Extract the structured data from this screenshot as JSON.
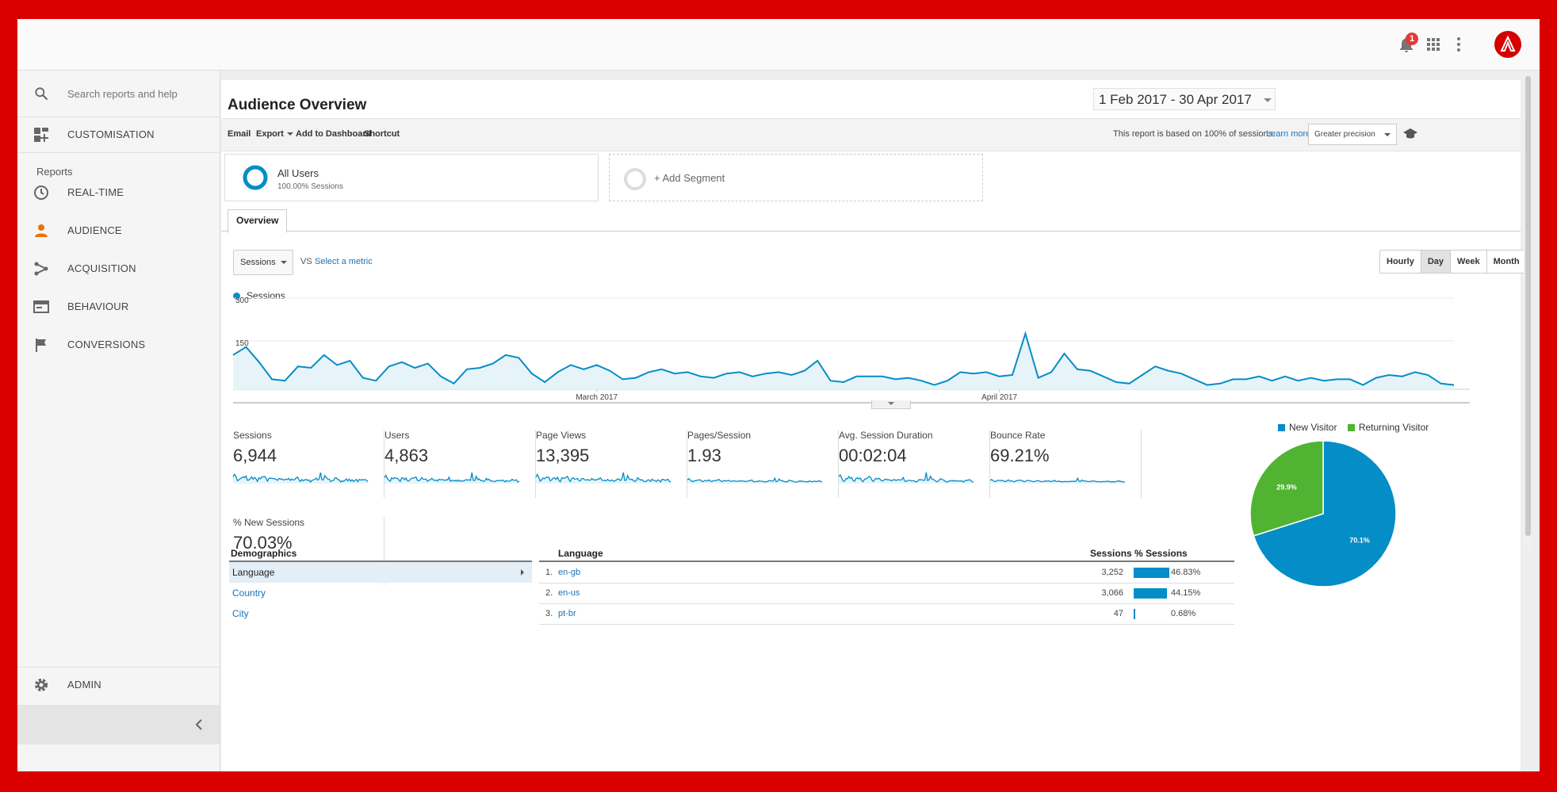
{
  "topbar": {
    "notification_count": "1",
    "icons": [
      "bell-icon",
      "apps-grid-icon",
      "more-vert-icon",
      "account-avatar"
    ]
  },
  "sidebar": {
    "search_placeholder": "Search reports and help",
    "customisation": "CUSTOMISATION",
    "reports_label": "Reports",
    "items": [
      {
        "label": "REAL-TIME",
        "icon": "clock-icon"
      },
      {
        "label": "AUDIENCE",
        "icon": "person-icon",
        "active": true
      },
      {
        "label": "ACQUISITION",
        "icon": "acquisition-icon"
      },
      {
        "label": "BEHAVIOUR",
        "icon": "behaviour-icon"
      },
      {
        "label": "CONVERSIONS",
        "icon": "flag-icon"
      }
    ],
    "admin": "ADMIN"
  },
  "report": {
    "title": "Audience Overview",
    "date_range": "1 Feb 2017 - 30 Apr 2017",
    "toolbar": {
      "email": "Email",
      "export": "Export",
      "add_to_dashboard": "Add to Dashboard",
      "shortcut": "Shortcut",
      "note": "This report is based on 100% of sessions.",
      "learn_more": "Learn more",
      "precision": "Greater precision"
    },
    "segments": {
      "all_users": "All Users",
      "all_users_sub": "100.00% Sessions",
      "add_segment": "+ Add Segment"
    },
    "tab": "Overview",
    "metric_select": "Sessions",
    "vs": "VS",
    "select_metric": "Select a metric",
    "granularity": [
      "Hourly",
      "Day",
      "Week",
      "Month"
    ],
    "granularity_active": "Day"
  },
  "chart_data": [
    {
      "type": "area",
      "series": [
        {
          "name": "Sessions",
          "values": [
            120,
            148,
            95,
            35,
            30,
            80,
            75,
            120,
            85,
            100,
            40,
            30,
            80,
            95,
            75,
            90,
            45,
            20,
            70,
            75,
            90,
            120,
            110,
            55,
            25,
            60,
            85,
            70,
            85,
            65,
            35,
            40,
            60,
            70,
            55,
            60,
            45,
            40,
            55,
            60,
            45,
            55,
            60,
            50,
            65,
            100,
            30,
            25,
            45,
            45,
            45,
            35,
            40,
            30,
            15,
            30,
            60,
            55,
            60,
            45,
            50,
            195,
            40,
            60,
            125,
            70,
            65,
            45,
            25,
            20,
            50,
            80,
            65,
            55,
            35,
            15,
            20,
            35,
            35,
            45,
            30,
            45,
            30,
            40,
            30,
            35,
            35,
            15,
            40,
            50,
            45,
            60,
            50,
            20,
            15
          ]
        }
      ],
      "x_start": "1 Feb 2017",
      "x_end": "30 Apr 2017",
      "x_tick_labels": [
        "March 2017",
        "April 2017"
      ],
      "y_tick_labels": [
        "300",
        "150"
      ],
      "ylim": [
        0,
        300
      ],
      "color": "#058dc7",
      "legend": "top-left"
    },
    {
      "type": "pie",
      "labels": [
        "New Visitor",
        "Returning Visitor"
      ],
      "values": [
        70.1,
        29.9
      ],
      "value_labels": [
        "70.1%",
        "29.9%"
      ],
      "colors": [
        "#058dc7",
        "#50b432"
      ],
      "legend": "top"
    }
  ],
  "metrics": [
    {
      "name": "Sessions",
      "value": "6,944"
    },
    {
      "name": "Users",
      "value": "4,863"
    },
    {
      "name": "Page Views",
      "value": "13,395"
    },
    {
      "name": "Pages/Session",
      "value": "1.93"
    },
    {
      "name": "Avg. Session Duration",
      "value": "00:02:04"
    },
    {
      "name": "Bounce Rate",
      "value": "69.21%"
    },
    {
      "name": "% New Sessions",
      "value": "70.03%"
    }
  ],
  "demographics": {
    "title": "Demographics",
    "items": [
      "Language",
      "Country",
      "City"
    ],
    "selected": "Language"
  },
  "language_table": {
    "headers": [
      "Language",
      "Sessions",
      "% Sessions"
    ],
    "rows": [
      {
        "num": "1.",
        "language": "en-gb",
        "sessions": "3,252",
        "pct": "46.83%",
        "pct_value": 46.83
      },
      {
        "num": "2.",
        "language": "en-us",
        "sessions": "3,066",
        "pct": "44.15%",
        "pct_value": 44.15
      },
      {
        "num": "3.",
        "language": "pt-br",
        "sessions": "47",
        "pct": "0.68%",
        "pct_value": 0.68
      }
    ]
  },
  "colors": {
    "accent": "#058dc7",
    "returning": "#50b432",
    "brand_red": "#d50000",
    "frame": "#db0000"
  }
}
